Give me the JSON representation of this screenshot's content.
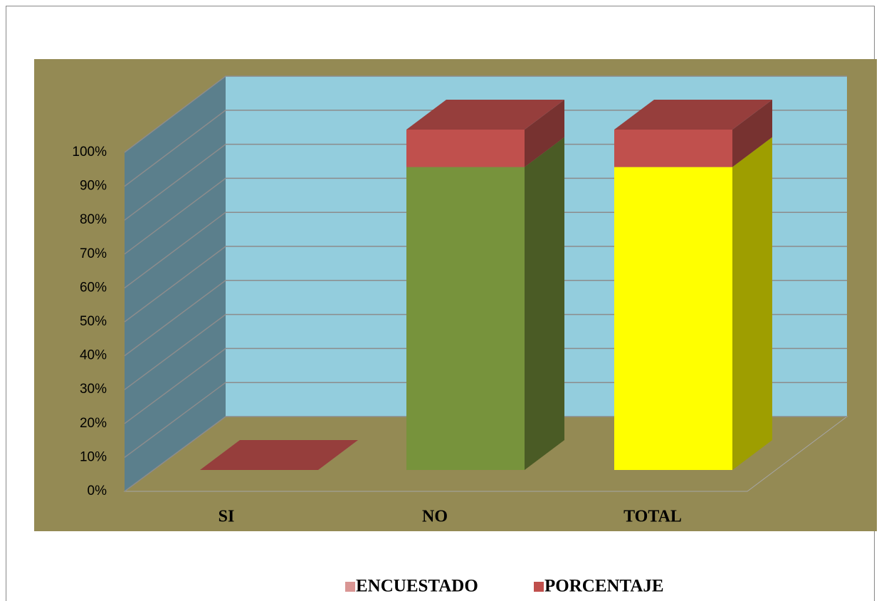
{
  "chart_data": {
    "type": "bar3d_stacked",
    "categories": [
      "SI",
      "NO",
      "TOTAL"
    ],
    "series": [
      {
        "name": "ENCUESTADO",
        "color": "#d99694",
        "point_colors": [
          "#d99694",
          "#77933c",
          "#ffff00"
        ],
        "values": [
          0,
          89,
          89
        ]
      },
      {
        "name": "PORCENTAJE",
        "color": "#c0504d",
        "values": [
          0,
          11,
          11
        ]
      }
    ],
    "ylim": [
      0,
      100
    ],
    "yticks": [
      {
        "value": 0,
        "label": "0%"
      },
      {
        "value": 10,
        "label": "10%"
      },
      {
        "value": 20,
        "label": "20%"
      },
      {
        "value": 30,
        "label": "30%"
      },
      {
        "value": 40,
        "label": "40%"
      },
      {
        "value": 50,
        "label": "50%"
      },
      {
        "value": 60,
        "label": "60%"
      },
      {
        "value": 70,
        "label": "70%"
      },
      {
        "value": 80,
        "label": "80%"
      },
      {
        "value": 90,
        "label": "90%"
      },
      {
        "value": 100,
        "label": "100%"
      }
    ],
    "grid": true
  }
}
